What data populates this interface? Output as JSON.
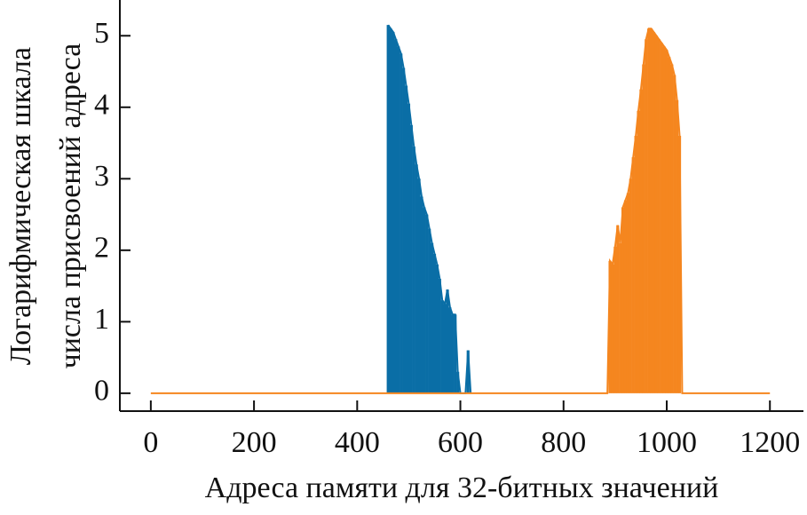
{
  "chart_data": {
    "type": "spike",
    "xlabel": "Адреса памяти для 32-битных значений",
    "ylabel": [
      "Логарифмическая шкала",
      "числа присвоений адреса"
    ],
    "xlim": [
      -60,
      1265
    ],
    "ylim": [
      -0.25,
      5.5
    ],
    "xticks": [
      0,
      200,
      400,
      600,
      800,
      1000,
      1200
    ],
    "yticks": [
      0,
      1,
      2,
      3,
      4,
      5
    ],
    "series": [
      {
        "color": "#0a6ea6",
        "x": [
          460,
          465,
          470,
          475,
          480,
          485,
          490,
          495,
          500,
          505,
          510,
          515,
          520,
          525,
          530,
          535,
          540,
          545,
          550,
          555,
          560,
          565,
          570,
          575,
          580,
          585,
          590,
          595,
          600,
          605,
          610,
          615,
          620
        ],
        "values": [
          5.15,
          5.1,
          5.05,
          4.95,
          4.85,
          4.75,
          4.55,
          4.3,
          4.05,
          3.75,
          3.45,
          3.2,
          3.0,
          2.75,
          2.6,
          2.5,
          2.3,
          2.1,
          1.95,
          1.8,
          1.6,
          1.3,
          1.25,
          1.45,
          1.2,
          1.1,
          1.1,
          0.3,
          0,
          0,
          0,
          0.6,
          0
        ]
      },
      {
        "color": "#f5861f",
        "x": [
          0,
          885,
          890,
          895,
          900,
          905,
          910,
          915,
          920,
          925,
          930,
          935,
          940,
          945,
          950,
          955,
          960,
          965,
          970,
          975,
          980,
          985,
          990,
          995,
          1000,
          1005,
          1010,
          1015,
          1020,
          1025,
          1030,
          1200
        ],
        "values": [
          0,
          0,
          1.85,
          1.8,
          2.05,
          2.35,
          2.1,
          2.6,
          2.7,
          2.8,
          3.0,
          3.3,
          3.6,
          3.95,
          4.25,
          4.6,
          4.95,
          5.1,
          5.1,
          5.05,
          5.0,
          4.95,
          4.9,
          4.85,
          4.8,
          4.7,
          4.6,
          4.45,
          4.1,
          3.6,
          0,
          0
        ]
      }
    ]
  }
}
